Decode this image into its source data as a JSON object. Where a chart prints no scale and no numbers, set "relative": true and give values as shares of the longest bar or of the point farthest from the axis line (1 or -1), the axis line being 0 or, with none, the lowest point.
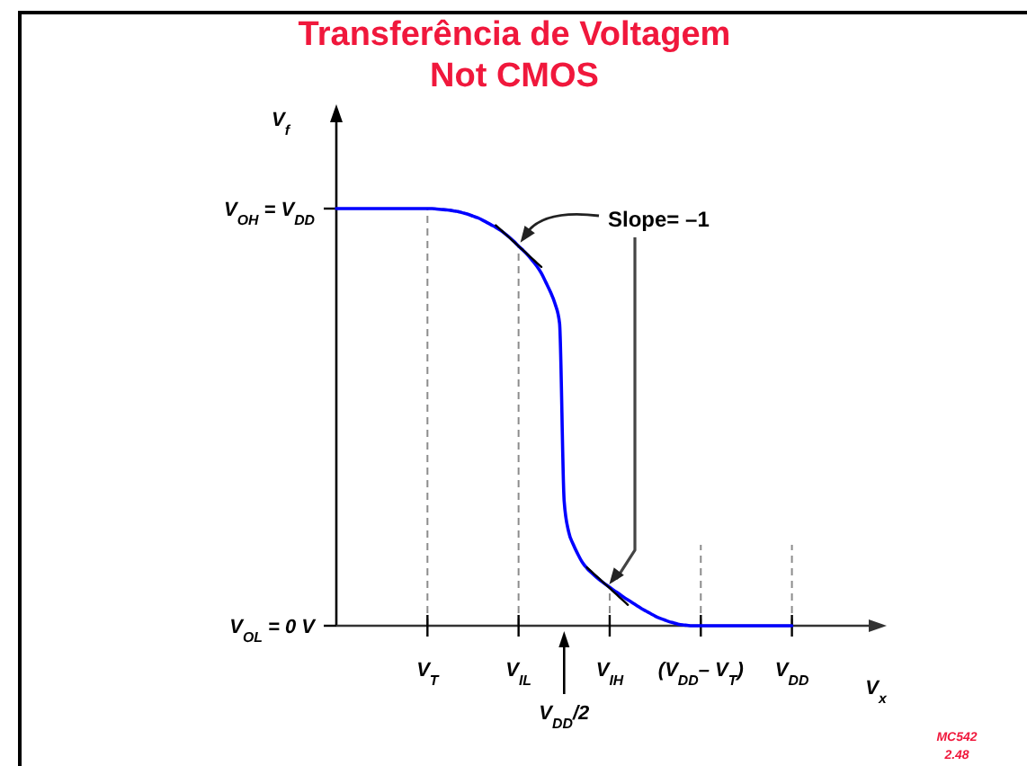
{
  "chart_data": {
    "type": "line",
    "relative": true,
    "title": "Transferência de Voltagem",
    "subtitle": "Not CMOS",
    "xlabel": "V$_{x}$",
    "ylabel": "V$_{f}$",
    "categories": [
      null,
      null,
      null,
      null,
      null,
      null,
      null,
      null,
      null,
      null,
      null,
      null,
      null,
      null,
      null,
      null,
      null,
      null,
      null,
      null,
      "V$_{T}$",
      null,
      null,
      null,
      null,
      null,
      null,
      null,
      null,
      null,
      null,
      null,
      null,
      null,
      null,
      null,
      null,
      null,
      null,
      null,
      "V$_{IL}$",
      null,
      null,
      null,
      null,
      null,
      null,
      null,
      null,
      null,
      null,
      null,
      null,
      null,
      null,
      null,
      null,
      null,
      null,
      null,
      "V$_{IH}$",
      null,
      null,
      null,
      null,
      null,
      null,
      null,
      null,
      null,
      null,
      null,
      null,
      null,
      null,
      null,
      null,
      null,
      null,
      null,
      "(V$_{DD}$– V$_{T}$)",
      null,
      null,
      null,
      null,
      null,
      null,
      null,
      null,
      null,
      null,
      null,
      null,
      null,
      null,
      null,
      null,
      null,
      null,
      null,
      "V$_{DD}$"
    ],
    "series": [
      {
        "color": "#0000ff",
        "values": [
          1,
          1,
          1,
          1,
          1,
          1,
          1,
          1,
          1,
          1,
          1,
          1,
          1,
          1,
          1,
          1,
          1,
          1,
          1,
          1,
          1,
          1,
          0.999,
          0.998,
          0.997,
          0.996,
          0.994,
          0.992,
          0.989,
          0.986,
          0.982,
          0.978,
          0.973,
          0.967,
          0.961,
          0.955,
          0.948,
          0.94,
          0.931,
          0.921,
          0.91,
          0.9,
          0.889,
          0.876,
          0.862,
          0.845,
          0.823,
          0.8,
          0.772,
          0.725,
          0.3,
          0.225,
          0.195,
          0.172,
          0.152,
          0.138,
          0.127,
          0.117,
          0.108,
          0.1,
          0.092,
          0.084,
          0.077,
          0.069,
          0.062,
          0.055,
          0.048,
          0.041,
          0.035,
          0.029,
          0.023,
          0.018,
          0.014,
          0.01,
          0.007,
          0.004,
          0.002,
          0.001,
          0,
          0,
          0,
          0,
          0,
          0,
          0,
          0,
          0,
          0,
          0,
          0,
          0,
          0,
          0,
          0,
          0,
          0,
          0,
          0,
          0,
          0,
          0
        ]
      },
      {
        "type": "line",
        "color": "#000000",
        "values": [
          null,
          null,
          null,
          null,
          null,
          null,
          null,
          null,
          null,
          null,
          null,
          null,
          null,
          null,
          null,
          null,
          null,
          null,
          null,
          null,
          null,
          null,
          null,
          null,
          null,
          null,
          null,
          null,
          null,
          null,
          null,
          null,
          null,
          null,
          null,
          0.96,
          0.95,
          0.94,
          0.93,
          0.92,
          0.91,
          0.9,
          0.89,
          0.88,
          0.87,
          0.86,
          null,
          null,
          null,
          null,
          null,
          null,
          null,
          null,
          null,
          null,
          null,
          null,
          null,
          null,
          null,
          null,
          null,
          null,
          null,
          null,
          null,
          null,
          null,
          null,
          null,
          null,
          null,
          null,
          null,
          null,
          null,
          null,
          null,
          null,
          null,
          null,
          null,
          null,
          null,
          null,
          null,
          null,
          null,
          null,
          null,
          null,
          null,
          null,
          null,
          null,
          null,
          null,
          null,
          null,
          null
        ]
      },
      {
        "type": "line",
        "color": "#000000",
        "values": [
          null,
          null,
          null,
          null,
          null,
          null,
          null,
          null,
          null,
          null,
          null,
          null,
          null,
          null,
          null,
          null,
          null,
          null,
          null,
          null,
          null,
          null,
          null,
          null,
          null,
          null,
          null,
          null,
          null,
          null,
          null,
          null,
          null,
          null,
          null,
          null,
          null,
          null,
          null,
          null,
          null,
          null,
          null,
          null,
          null,
          null,
          null,
          null,
          null,
          null,
          null,
          null,
          null,
          null,
          null,
          0.14,
          0.13,
          0.12,
          0.11,
          0.1,
          0.09,
          0.08,
          0.07,
          0.06,
          0.05,
          null,
          null,
          null,
          null,
          null,
          null,
          null,
          null,
          null,
          null,
          null,
          null,
          null,
          null,
          null,
          null,
          null,
          null,
          null,
          null,
          null,
          null,
          null,
          null,
          null,
          null,
          null,
          null,
          null,
          null,
          null,
          null,
          null,
          null,
          null,
          null
        ]
      }
    ],
    "grid": "x",
    "annotations": [
      "V$_{OH}$ = V$_{DD}$",
      "V$_{OL}$ = 0 V",
      "Slope= –1",
      "V$_{DD}$/2",
      "MC542",
      "2.48"
    ]
  }
}
